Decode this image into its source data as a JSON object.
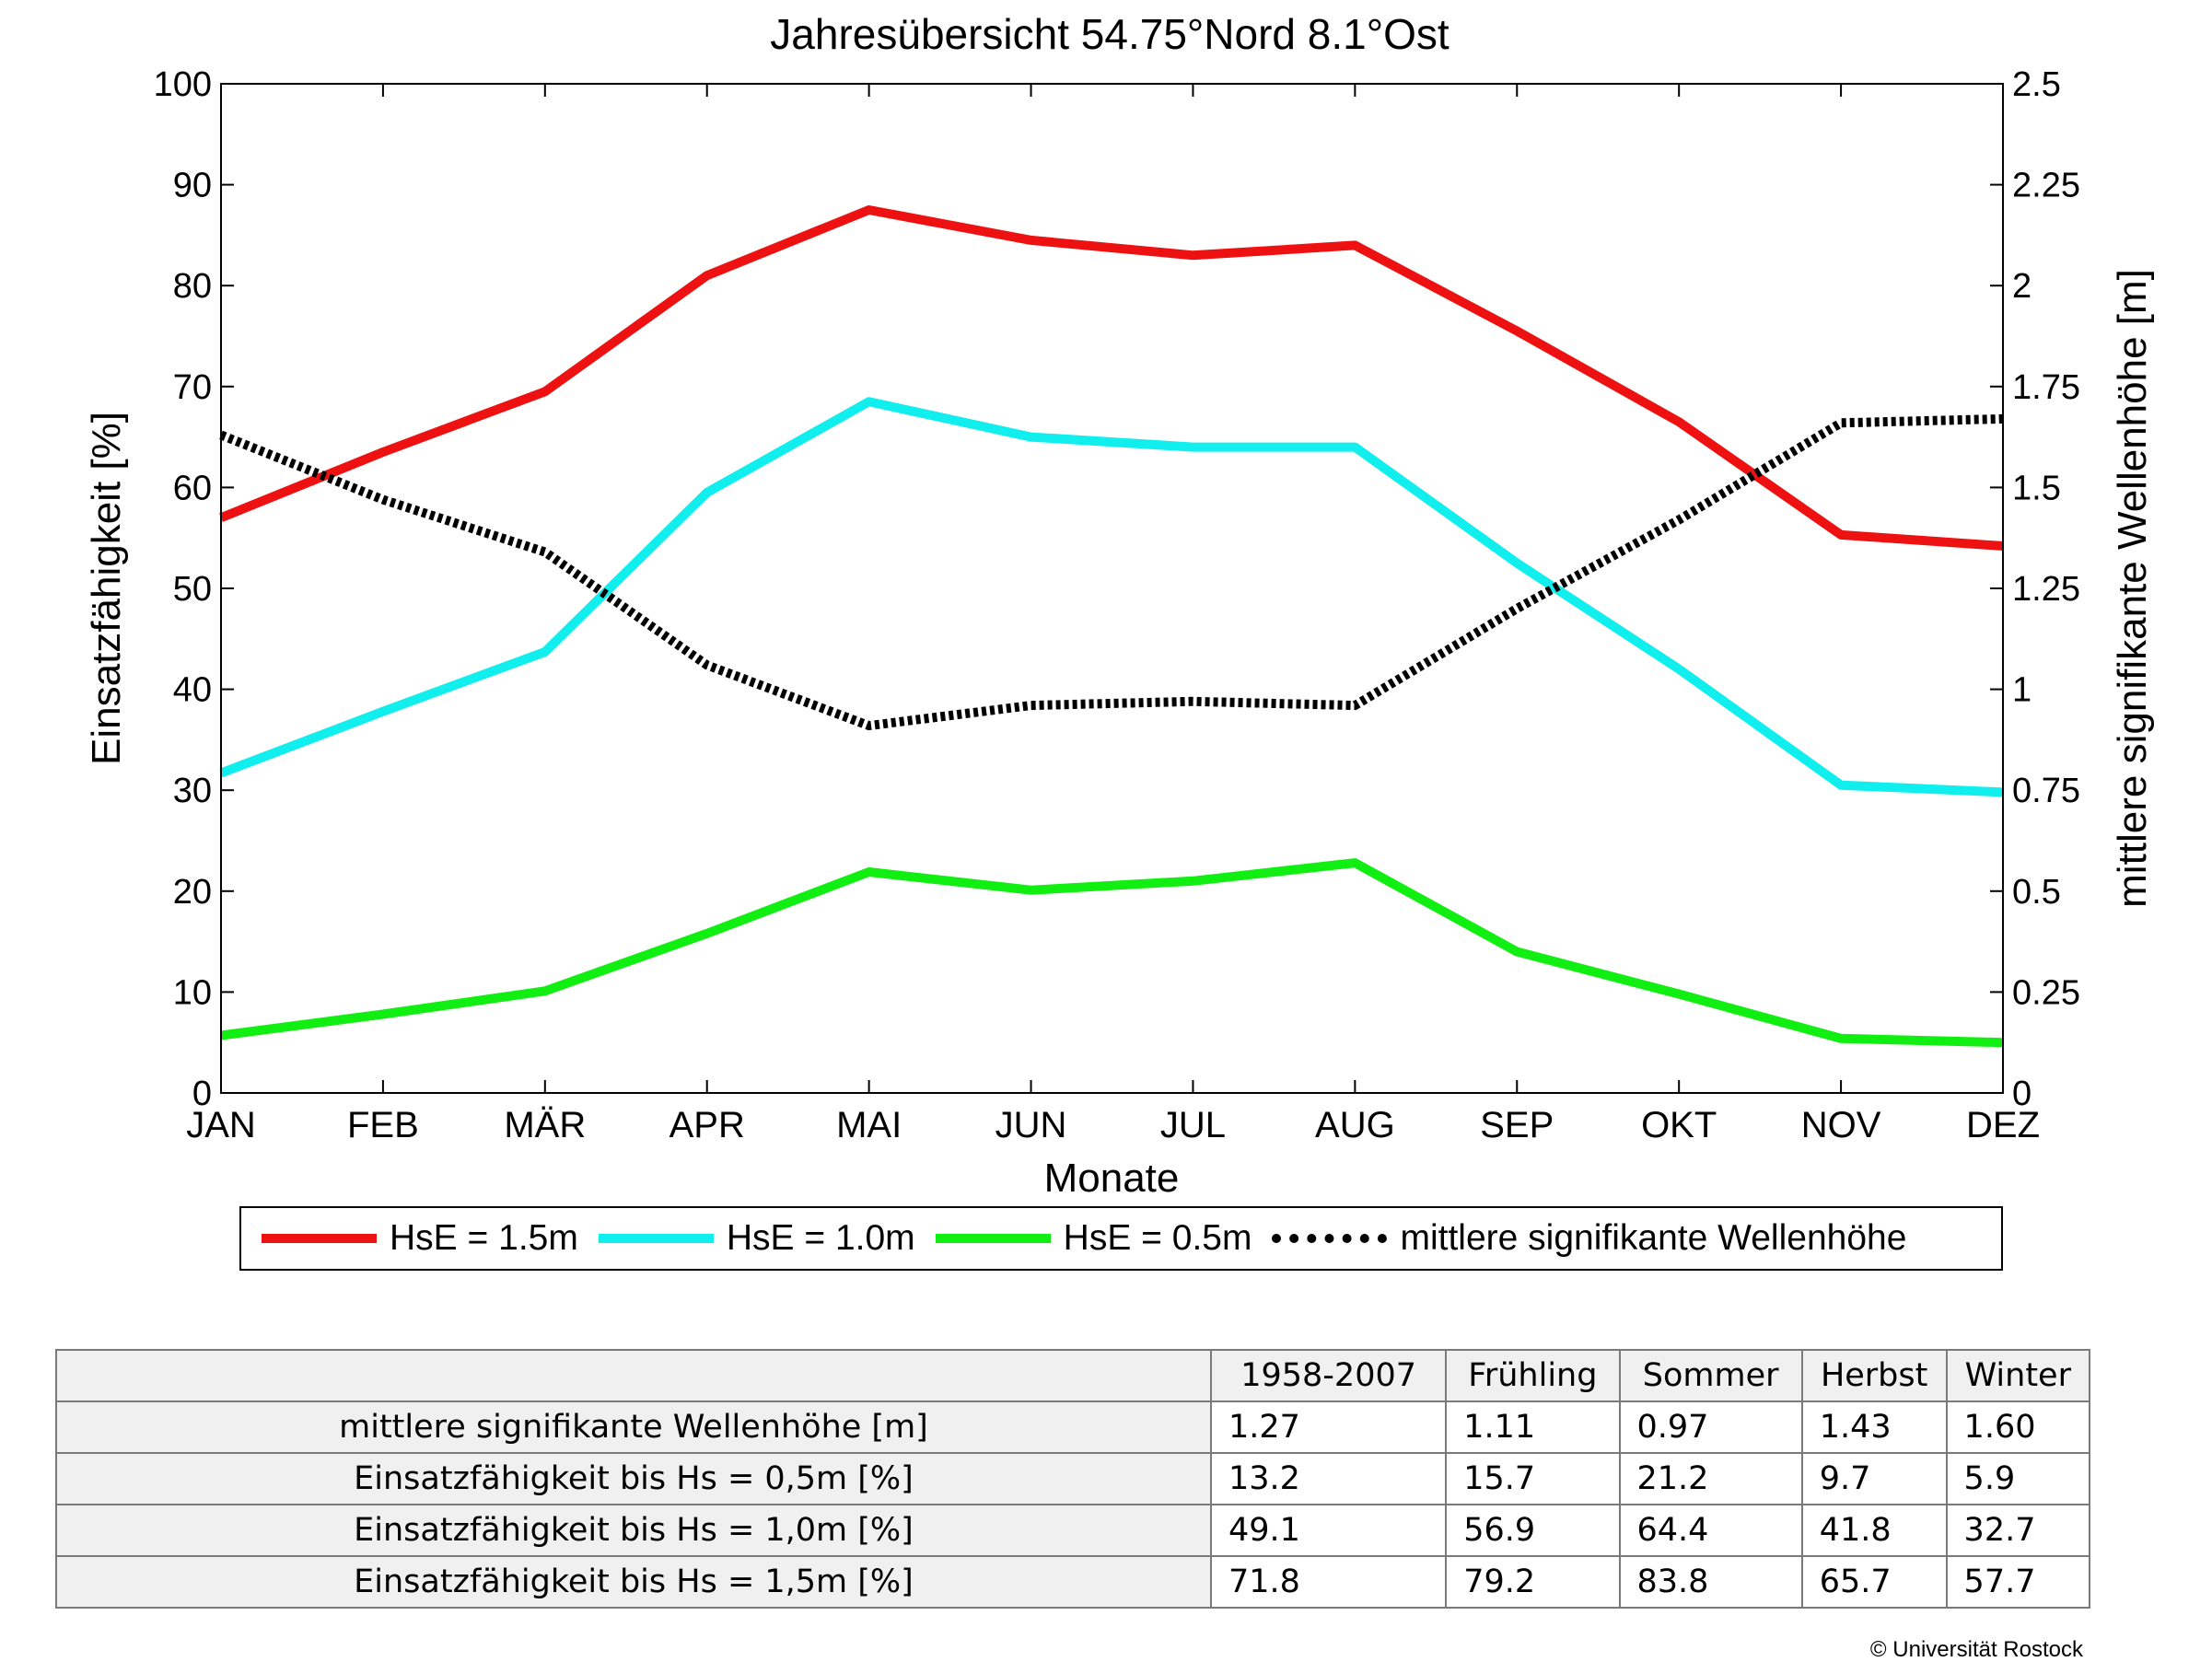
{
  "chart_data": {
    "type": "line",
    "title": "Jahresübersicht  54.75°Nord  8.1°Ost",
    "xlabel": "Monate",
    "ylabel": "Einsatzfähigkeit [%]",
    "ylabel_right": "mittlere signifikante Wellenhöhe [m]",
    "categories": [
      "JAN",
      "FEB",
      "MÄR",
      "APR",
      "MAI",
      "JUN",
      "JUL",
      "AUG",
      "SEP",
      "OKT",
      "NOV",
      "DEZ"
    ],
    "ylim": [
      0,
      100
    ],
    "ylim_right": [
      0,
      2.5
    ],
    "yticks": [
      "0",
      "10",
      "20",
      "30",
      "40",
      "50",
      "60",
      "70",
      "80",
      "90",
      "100"
    ],
    "yticks_right": [
      "0",
      "0.25",
      "0.5",
      "0.75",
      "1",
      "1.25",
      "1.5",
      "1.75",
      "2",
      "2.25",
      "2.5"
    ],
    "grid": false,
    "legend_position": "bottom",
    "series": [
      {
        "name": "HsE = 1.5m",
        "color": "#ee1111",
        "axis": "left",
        "style": "solid",
        "values": [
          57,
          63.5,
          69.5,
          81,
          87.5,
          84.5,
          83,
          84,
          75.5,
          66.5,
          55.3,
          54.2
        ]
      },
      {
        "name": "HsE = 1.0m",
        "color": "#11eeee",
        "axis": "left",
        "style": "solid",
        "values": [
          31.7,
          37.8,
          43.7,
          59.5,
          68.5,
          65,
          64,
          64,
          52.5,
          42,
          30.5,
          29.8
        ]
      },
      {
        "name": "HsE = 0.5m",
        "color": "#11ee11",
        "axis": "left",
        "style": "solid",
        "values": [
          5.7,
          7.8,
          10.1,
          15.8,
          21.9,
          20.1,
          21,
          22.8,
          14,
          9.8,
          5.4,
          5
        ]
      },
      {
        "name": "mittlere signifikante Wellenhöhe",
        "color": "#000000",
        "axis": "right",
        "style": "dotted",
        "values": [
          1.63,
          1.47,
          1.34,
          1.06,
          0.91,
          0.96,
          0.97,
          0.96,
          1.2,
          1.42,
          1.66,
          1.67
        ]
      }
    ]
  },
  "table": {
    "headers": [
      "1958-2007",
      "Frühling",
      "Sommer",
      "Herbst",
      "Winter"
    ],
    "rows": [
      {
        "label": "mittlere signifikante Wellenhöhe [m]",
        "values": [
          "1.27",
          "1.11",
          "0.97",
          "1.43",
          "1.60"
        ]
      },
      {
        "label": "Einsatzfähigkeit bis Hs = 0,5m [%]",
        "values": [
          "13.2",
          "15.7",
          "21.2",
          "9.7",
          "5.9"
        ]
      },
      {
        "label": "Einsatzfähigkeit bis Hs = 1,0m [%]",
        "values": [
          "49.1",
          "56.9",
          "64.4",
          "41.8",
          "32.7"
        ]
      },
      {
        "label": "Einsatzfähigkeit bis Hs = 1,5m [%]",
        "values": [
          "71.8",
          "79.2",
          "83.8",
          "65.7",
          "57.7"
        ]
      }
    ]
  },
  "copyright": "© Universität Rostock"
}
